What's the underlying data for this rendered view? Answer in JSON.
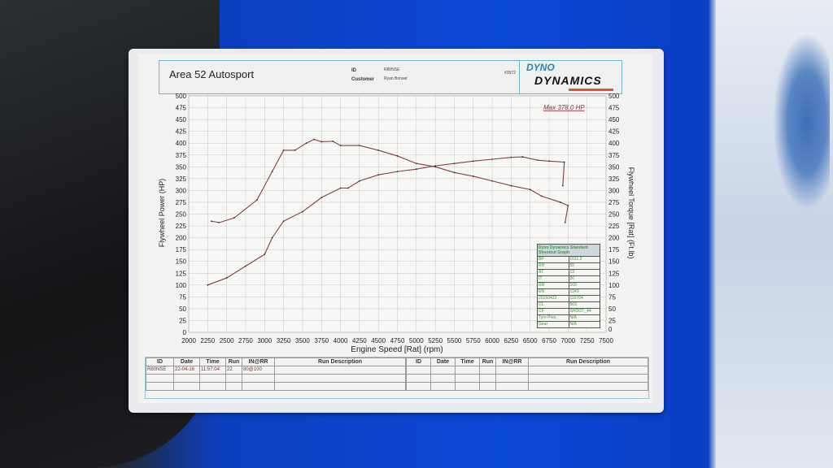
{
  "header": {
    "company": "Area 52 Autosport",
    "id_label": "ID",
    "id_value": "R80NSE",
    "customer_label": "Customer",
    "customer_value": "Ryan Bonser",
    "sheet_number": "#3572",
    "logo_line1": "DYNO",
    "logo_line2": "DYNAMICS"
  },
  "chart_data": {
    "type": "line",
    "xlabel": "Engine Speed [Rat] (rpm)",
    "ylabel": "Flywheel Power (HP)",
    "y2label": "Flywheel Torque [Rat] (Ft.lb)",
    "annotation": "Max 378.0 HP",
    "xlim": [
      2000,
      7500
    ],
    "ylim": [
      0,
      500
    ],
    "y2lim": [
      0,
      500
    ],
    "grid": true,
    "x_ticks": [
      "2000",
      "2250",
      "2500",
      "2750",
      "3000",
      "3250",
      "3500",
      "3750",
      "4000",
      "4250",
      "4500",
      "4750",
      "5000",
      "5250",
      "5500",
      "5750",
      "6000",
      "6250",
      "6500",
      "6750",
      "7000",
      "7250",
      "7500"
    ],
    "y_ticks": [
      "0",
      "25",
      "50",
      "75",
      "100",
      "125",
      "150",
      "175",
      "200",
      "225",
      "250",
      "275",
      "300",
      "325",
      "350",
      "375",
      "400",
      "425",
      "450",
      "475",
      "500"
    ],
    "y2_ticks": [
      "0",
      "25",
      "50",
      "75",
      "100",
      "125",
      "150",
      "175",
      "200",
      "225",
      "250",
      "275",
      "300",
      "325",
      "350",
      "375",
      "400",
      "425",
      "450",
      "475",
      "500"
    ],
    "series": [
      {
        "key": "power",
        "color": "#8b3a4a",
        "x": [
          2250,
          2500,
          2750,
          3000,
          3100,
          3250,
          3500,
          3750,
          4000,
          4100,
          4250,
          4500,
          4750,
          5000,
          5250,
          5500,
          5750,
          6000,
          6250,
          6400,
          6600,
          6750,
          6950,
          6930
        ],
        "y": [
          100,
          115,
          140,
          165,
          200,
          235,
          255,
          285,
          305,
          305,
          320,
          333,
          340,
          345,
          352,
          357,
          362,
          366,
          370,
          371,
          364,
          362,
          360,
          310
        ]
      },
      {
        "key": "torque",
        "color": "#8b3a4a",
        "x": [
          2300,
          2400,
          2600,
          2900,
          3100,
          3250,
          3400,
          3550,
          3650,
          3750,
          3900,
          4000,
          4250,
          4500,
          4750,
          5000,
          5250,
          5500,
          5750,
          6000,
          6250,
          6500,
          6650,
          6900,
          7000,
          6960
        ],
        "y": [
          235,
          232,
          242,
          280,
          340,
          385,
          385,
          400,
          408,
          403,
          404,
          395,
          395,
          385,
          373,
          357,
          350,
          338,
          330,
          320,
          310,
          302,
          288,
          275,
          268,
          232
        ]
      }
    ]
  },
  "legend_box": {
    "title": "Dyno Dynamics Standard Shootout Graph",
    "rows": [
      [
        "BP",
        "1011.2"
      ],
      [
        "RH",
        "55"
      ],
      [
        "AT",
        "13"
      ],
      [
        "IT",
        "20"
      ],
      [
        "RR",
        "100"
      ],
      [
        "EN",
        "1243"
      ],
      [
        "20160422",
        "115704"
      ],
      [
        "CL",
        "563"
      ],
      [
        "CF",
        "SHOOT_44"
      ],
      [
        "Tyre Pres.",
        "N/A"
      ],
      [
        "Gear",
        "N/A"
      ]
    ]
  },
  "run_table": {
    "headers": [
      "ID",
      "Date",
      "Time",
      "Run",
      "IN@RR",
      "Run Description"
    ],
    "rows": [
      [
        "R80NSE",
        "22-04-16",
        "11:57:04",
        "22",
        "80@100",
        ""
      ]
    ]
  }
}
